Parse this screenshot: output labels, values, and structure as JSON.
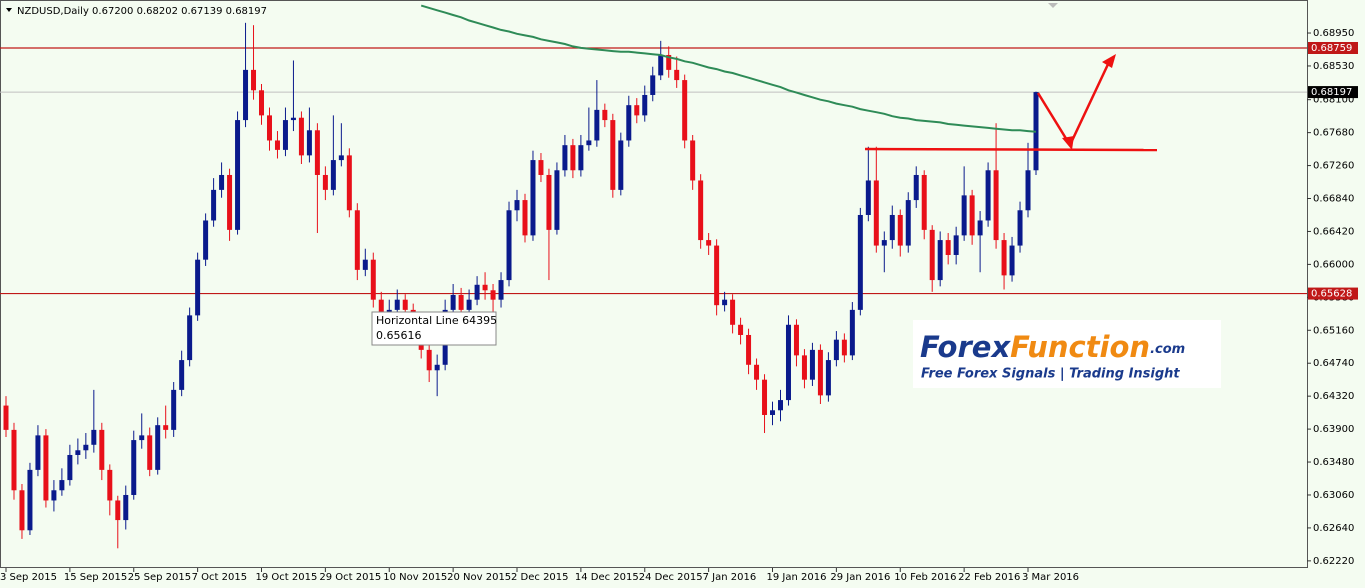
{
  "chart_data": {
    "type": "candlestick",
    "header": "NZDUSD,Daily  0.67200 0.68202 0.67139 0.68197",
    "categories": [
      "3 Sep 2015",
      null,
      null,
      null,
      null,
      null,
      null,
      null,
      "15 Sep 2015",
      null,
      null,
      null,
      null,
      null,
      null,
      null,
      "25 Sep 2015",
      null,
      null,
      null,
      null,
      null,
      null,
      null,
      "7 Oct 2015",
      null,
      null,
      null,
      null,
      null,
      null,
      null,
      "19 Oct 2015",
      null,
      null,
      null,
      null,
      null,
      null,
      null,
      "29 Oct 2015",
      null,
      null,
      null,
      null,
      null,
      null,
      null,
      "10 Nov 2015",
      null,
      null,
      null,
      null,
      null,
      null,
      null,
      "20 Nov 2015",
      null,
      null,
      null,
      null,
      null,
      null,
      null,
      "2 Dec 2015",
      null,
      null,
      null,
      null,
      null,
      null,
      null,
      "14 Dec 2015",
      null,
      null,
      null,
      null,
      null,
      null,
      null,
      "24 Dec 2015",
      null,
      null,
      null,
      null,
      null,
      null,
      null,
      "7 Jan 2016",
      null,
      null,
      null,
      null,
      null,
      null,
      null,
      "19 Jan 2016",
      null,
      null,
      null,
      null,
      null,
      null,
      null,
      "29 Jan 2016",
      null,
      null,
      null,
      null,
      null,
      null,
      null,
      "10 Feb 2016",
      null,
      null,
      null,
      null,
      null,
      null,
      null,
      "22 Feb 2016",
      null,
      null,
      null,
      null,
      null,
      null,
      null,
      "3 Mar 2016",
      null
    ],
    "ohlc": [
      [
        0.642,
        0.6432,
        0.638,
        0.6389
      ],
      [
        0.6389,
        0.6398,
        0.63,
        0.6312
      ],
      [
        0.6312,
        0.632,
        0.625,
        0.6261
      ],
      [
        0.6261,
        0.6347,
        0.6255,
        0.6338
      ],
      [
        0.6338,
        0.6395,
        0.633,
        0.6382
      ],
      [
        0.6382,
        0.639,
        0.629,
        0.6299
      ],
      [
        0.6299,
        0.6325,
        0.6285,
        0.6312
      ],
      [
        0.6312,
        0.634,
        0.6305,
        0.6325
      ],
      [
        0.6325,
        0.637,
        0.6318,
        0.6357
      ],
      [
        0.6357,
        0.6378,
        0.6345,
        0.6363
      ],
      [
        0.6363,
        0.6385,
        0.6352,
        0.637
      ],
      [
        0.637,
        0.644,
        0.636,
        0.6389
      ],
      [
        0.6389,
        0.6398,
        0.6325,
        0.6338
      ],
      [
        0.6338,
        0.6345,
        0.628,
        0.6299
      ],
      [
        0.6299,
        0.6305,
        0.6238,
        0.6274
      ],
      [
        0.6274,
        0.6318,
        0.6262,
        0.6306
      ],
      [
        0.6306,
        0.6388,
        0.63,
        0.6376
      ],
      [
        0.6376,
        0.641,
        0.6365,
        0.6382
      ],
      [
        0.6382,
        0.6392,
        0.633,
        0.6338
      ],
      [
        0.6338,
        0.6405,
        0.6332,
        0.6395
      ],
      [
        0.6395,
        0.642,
        0.6378,
        0.6389
      ],
      [
        0.6389,
        0.645,
        0.638,
        0.644
      ],
      [
        0.644,
        0.649,
        0.6432,
        0.6478
      ],
      [
        0.6478,
        0.6545,
        0.647,
        0.6535
      ],
      [
        0.6535,
        0.6615,
        0.6528,
        0.6606
      ],
      [
        0.6606,
        0.6665,
        0.6598,
        0.6656
      ],
      [
        0.6656,
        0.671,
        0.6648,
        0.6695
      ],
      [
        0.6695,
        0.673,
        0.6685,
        0.6714
      ],
      [
        0.6714,
        0.6722,
        0.663,
        0.6644
      ],
      [
        0.6644,
        0.6795,
        0.6638,
        0.6784
      ],
      [
        0.6784,
        0.6908,
        0.6775,
        0.6848
      ],
      [
        0.6848,
        0.6905,
        0.681,
        0.6822
      ],
      [
        0.6822,
        0.683,
        0.6778,
        0.679
      ],
      [
        0.679,
        0.68,
        0.6745,
        0.6758
      ],
      [
        0.6758,
        0.677,
        0.6735,
        0.6746
      ],
      [
        0.6746,
        0.68,
        0.6738,
        0.6784
      ],
      [
        0.6784,
        0.686,
        0.677,
        0.6787
      ],
      [
        0.6787,
        0.6795,
        0.6728,
        0.6739
      ],
      [
        0.6739,
        0.68,
        0.673,
        0.6771
      ],
      [
        0.6771,
        0.678,
        0.664,
        0.6714
      ],
      [
        0.6714,
        0.6725,
        0.6682,
        0.6695
      ],
      [
        0.6695,
        0.679,
        0.6688,
        0.6733
      ],
      [
        0.6733,
        0.678,
        0.6725,
        0.6739
      ],
      [
        0.6739,
        0.6748,
        0.666,
        0.6669
      ],
      [
        0.6669,
        0.6678,
        0.658,
        0.6593
      ],
      [
        0.6593,
        0.662,
        0.6585,
        0.6606
      ],
      [
        0.6606,
        0.6615,
        0.6545,
        0.6555
      ],
      [
        0.6555,
        0.6565,
        0.6505,
        0.6516
      ],
      [
        0.6516,
        0.6555,
        0.6508,
        0.6542
      ],
      [
        0.6542,
        0.6568,
        0.653,
        0.6555
      ],
      [
        0.6555,
        0.6562,
        0.653,
        0.6542
      ],
      [
        0.6542,
        0.655,
        0.6505,
        0.6516
      ],
      [
        0.6516,
        0.6525,
        0.648,
        0.6491
      ],
      [
        0.6491,
        0.6498,
        0.645,
        0.6465
      ],
      [
        0.6465,
        0.6485,
        0.6432,
        0.6472
      ],
      [
        0.6472,
        0.6555,
        0.6465,
        0.6542
      ],
      [
        0.6542,
        0.6575,
        0.6535,
        0.6561
      ],
      [
        0.6561,
        0.657,
        0.653,
        0.6542
      ],
      [
        0.6542,
        0.6568,
        0.6535,
        0.6555
      ],
      [
        0.6555,
        0.6585,
        0.6548,
        0.6574
      ],
      [
        0.6574,
        0.659,
        0.6555,
        0.6567
      ],
      [
        0.6567,
        0.6575,
        0.652,
        0.6555
      ],
      [
        0.6555,
        0.659,
        0.6545,
        0.658
      ],
      [
        0.658,
        0.668,
        0.6572,
        0.6669
      ],
      [
        0.6669,
        0.6695,
        0.6655,
        0.6682
      ],
      [
        0.6682,
        0.669,
        0.6628,
        0.6637
      ],
      [
        0.6637,
        0.6745,
        0.663,
        0.6733
      ],
      [
        0.6733,
        0.6742,
        0.6705,
        0.6714
      ],
      [
        0.6714,
        0.6722,
        0.658,
        0.6644
      ],
      [
        0.6644,
        0.673,
        0.6638,
        0.672
      ],
      [
        0.672,
        0.6765,
        0.6712,
        0.6752
      ],
      [
        0.6752,
        0.676,
        0.671,
        0.672
      ],
      [
        0.672,
        0.6765,
        0.6712,
        0.6752
      ],
      [
        0.6752,
        0.68,
        0.6745,
        0.6758
      ],
      [
        0.6758,
        0.6835,
        0.675,
        0.6797
      ],
      [
        0.6797,
        0.6805,
        0.6775,
        0.6784
      ],
      [
        0.6784,
        0.6792,
        0.6685,
        0.6695
      ],
      [
        0.6695,
        0.6768,
        0.6688,
        0.6758
      ],
      [
        0.6758,
        0.6815,
        0.675,
        0.6803
      ],
      [
        0.6803,
        0.6812,
        0.678,
        0.679
      ],
      [
        0.679,
        0.6828,
        0.6782,
        0.6816
      ],
      [
        0.6816,
        0.6852,
        0.6808,
        0.6841
      ],
      [
        0.6841,
        0.6885,
        0.6835,
        0.6867
      ],
      [
        0.6867,
        0.6878,
        0.6838,
        0.6848
      ],
      [
        0.6848,
        0.6865,
        0.6825,
        0.6835
      ],
      [
        0.6835,
        0.6842,
        0.6748,
        0.6758
      ],
      [
        0.6758,
        0.6765,
        0.6695,
        0.6707
      ],
      [
        0.6707,
        0.6715,
        0.662,
        0.6631
      ],
      [
        0.6631,
        0.664,
        0.6612,
        0.6624
      ],
      [
        0.6624,
        0.6632,
        0.6535,
        0.6548
      ],
      [
        0.6548,
        0.6565,
        0.654,
        0.6555
      ],
      [
        0.6555,
        0.6562,
        0.6512,
        0.6523
      ],
      [
        0.6523,
        0.6532,
        0.6498,
        0.651
      ],
      [
        0.651,
        0.6518,
        0.646,
        0.6472
      ],
      [
        0.6472,
        0.648,
        0.644,
        0.6453
      ],
      [
        0.6453,
        0.646,
        0.6385,
        0.6408
      ],
      [
        0.6408,
        0.6425,
        0.6395,
        0.6414
      ],
      [
        0.6414,
        0.644,
        0.64,
        0.6427
      ],
      [
        0.6427,
        0.6535,
        0.642,
        0.6523
      ],
      [
        0.6523,
        0.653,
        0.647,
        0.6484
      ],
      [
        0.6484,
        0.6492,
        0.6442,
        0.6453
      ],
      [
        0.6453,
        0.65,
        0.6445,
        0.6491
      ],
      [
        0.6491,
        0.6498,
        0.6422,
        0.6433
      ],
      [
        0.6433,
        0.6488,
        0.6425,
        0.6478
      ],
      [
        0.6478,
        0.6515,
        0.647,
        0.6504
      ],
      [
        0.6504,
        0.6512,
        0.6475,
        0.6484
      ],
      [
        0.6484,
        0.6552,
        0.6478,
        0.6542
      ],
      [
        0.6542,
        0.6672,
        0.6535,
        0.6663
      ],
      [
        0.6663,
        0.675,
        0.6655,
        0.6707
      ],
      [
        0.6707,
        0.675,
        0.6615,
        0.6624
      ],
      [
        0.6624,
        0.6642,
        0.659,
        0.6631
      ],
      [
        0.6631,
        0.6675,
        0.662,
        0.6663
      ],
      [
        0.6663,
        0.667,
        0.661,
        0.6624
      ],
      [
        0.6624,
        0.6692,
        0.6615,
        0.6682
      ],
      [
        0.6682,
        0.6725,
        0.6672,
        0.6714
      ],
      [
        0.6714,
        0.672,
        0.6632,
        0.6644
      ],
      [
        0.6644,
        0.665,
        0.6565,
        0.658
      ],
      [
        0.658,
        0.6642,
        0.6572,
        0.6631
      ],
      [
        0.6631,
        0.664,
        0.66,
        0.6612
      ],
      [
        0.6612,
        0.6648,
        0.66,
        0.6637
      ],
      [
        0.6637,
        0.6725,
        0.663,
        0.6688
      ],
      [
        0.6688,
        0.6695,
        0.6625,
        0.6637
      ],
      [
        0.6637,
        0.6668,
        0.659,
        0.6656
      ],
      [
        0.6656,
        0.673,
        0.6648,
        0.672
      ],
      [
        0.672,
        0.678,
        0.662,
        0.6631
      ],
      [
        0.6631,
        0.664,
        0.6568,
        0.6586
      ],
      [
        0.6586,
        0.6635,
        0.6578,
        0.6624
      ],
      [
        0.6624,
        0.668,
        0.6615,
        0.6669
      ],
      [
        0.6669,
        0.6755,
        0.666,
        0.672
      ],
      [
        0.672,
        0.68202,
        0.67139,
        0.68197
      ]
    ],
    "ma": [
      null,
      null,
      null,
      null,
      null,
      null,
      null,
      null,
      null,
      null,
      null,
      null,
      null,
      null,
      null,
      null,
      null,
      null,
      null,
      null,
      null,
      null,
      null,
      null,
      null,
      null,
      null,
      null,
      null,
      null,
      null,
      null,
      null,
      null,
      null,
      null,
      null,
      null,
      null,
      null,
      null,
      null,
      null,
      null,
      null,
      null,
      null,
      null,
      null,
      null,
      null,
      null,
      0.693,
      0.6927,
      0.6924,
      0.6921,
      0.6918,
      0.6915,
      0.6911,
      0.6908,
      0.6905,
      0.6902,
      0.6899,
      0.6897,
      0.6894,
      0.6892,
      0.689,
      0.6887,
      0.6885,
      0.6883,
      0.6881,
      0.6878,
      0.6876,
      0.6875,
      0.6874,
      0.6873,
      0.6872,
      0.6871,
      0.6871,
      0.687,
      0.6869,
      0.6868,
      0.6867,
      0.6864,
      0.6862,
      0.6859,
      0.6857,
      0.6854,
      0.6851,
      0.6849,
      0.6846,
      0.6844,
      0.6841,
      0.6838,
      0.6835,
      0.6832,
      0.6829,
      0.6826,
      0.6822,
      0.6819,
      0.6816,
      0.6813,
      0.681,
      0.6808,
      0.6805,
      0.6803,
      0.6801,
      0.6798,
      0.6796,
      0.6794,
      0.6792,
      0.6789,
      0.6787,
      0.6786,
      0.6784,
      0.6783,
      0.6782,
      0.6781,
      0.6779,
      0.6778,
      0.6777,
      0.6776,
      0.6775,
      0.6774,
      0.6773,
      0.6772,
      0.6771,
      0.6771,
      0.677,
      0.6769
    ],
    "ma_color": "#2e8b57",
    "up_color": "#0a1a8c",
    "down_color": "#e8101a",
    "hlines": [
      {
        "value": 0.68759,
        "color": "#c01818"
      },
      {
        "value": 0.65628,
        "color": "#c01818"
      }
    ],
    "tooltip": {
      "title": "Horizontal Line 64395",
      "value": "0.65616"
    },
    "logo": {
      "part1": "Forex",
      "part2": "Function",
      "part3": ".com",
      "tagline": "Free Forex Signals | Trading Insight"
    },
    "ylim": [
      0.62129,
      0.69371
    ],
    "yticks": [
      {
        "value": 0.6895,
        "label": "0.68950"
      },
      {
        "value": 0.6853,
        "label": "0.68530"
      },
      {
        "value": 0.681,
        "label": "0.68100"
      },
      {
        "value": 0.6768,
        "label": "0.67680"
      },
      {
        "value": 0.6726,
        "label": "0.67260"
      },
      {
        "value": 0.6684,
        "label": "0.66840"
      },
      {
        "value": 0.6642,
        "label": "0.66420"
      },
      {
        "value": 0.66,
        "label": "0.66000"
      },
      {
        "value": 0.6558,
        "label": "0.65580"
      },
      {
        "value": 0.6516,
        "label": "0.65160"
      },
      {
        "value": 0.6474,
        "label": "0.64740"
      },
      {
        "value": 0.6432,
        "label": "0.64320"
      },
      {
        "value": 0.639,
        "label": "0.63900"
      },
      {
        "value": 0.6348,
        "label": "0.63480"
      },
      {
        "value": 0.6306,
        "label": "0.63060"
      },
      {
        "value": 0.6264,
        "label": "0.62640"
      },
      {
        "value": 0.6222,
        "label": "0.62220"
      }
    ]
  }
}
